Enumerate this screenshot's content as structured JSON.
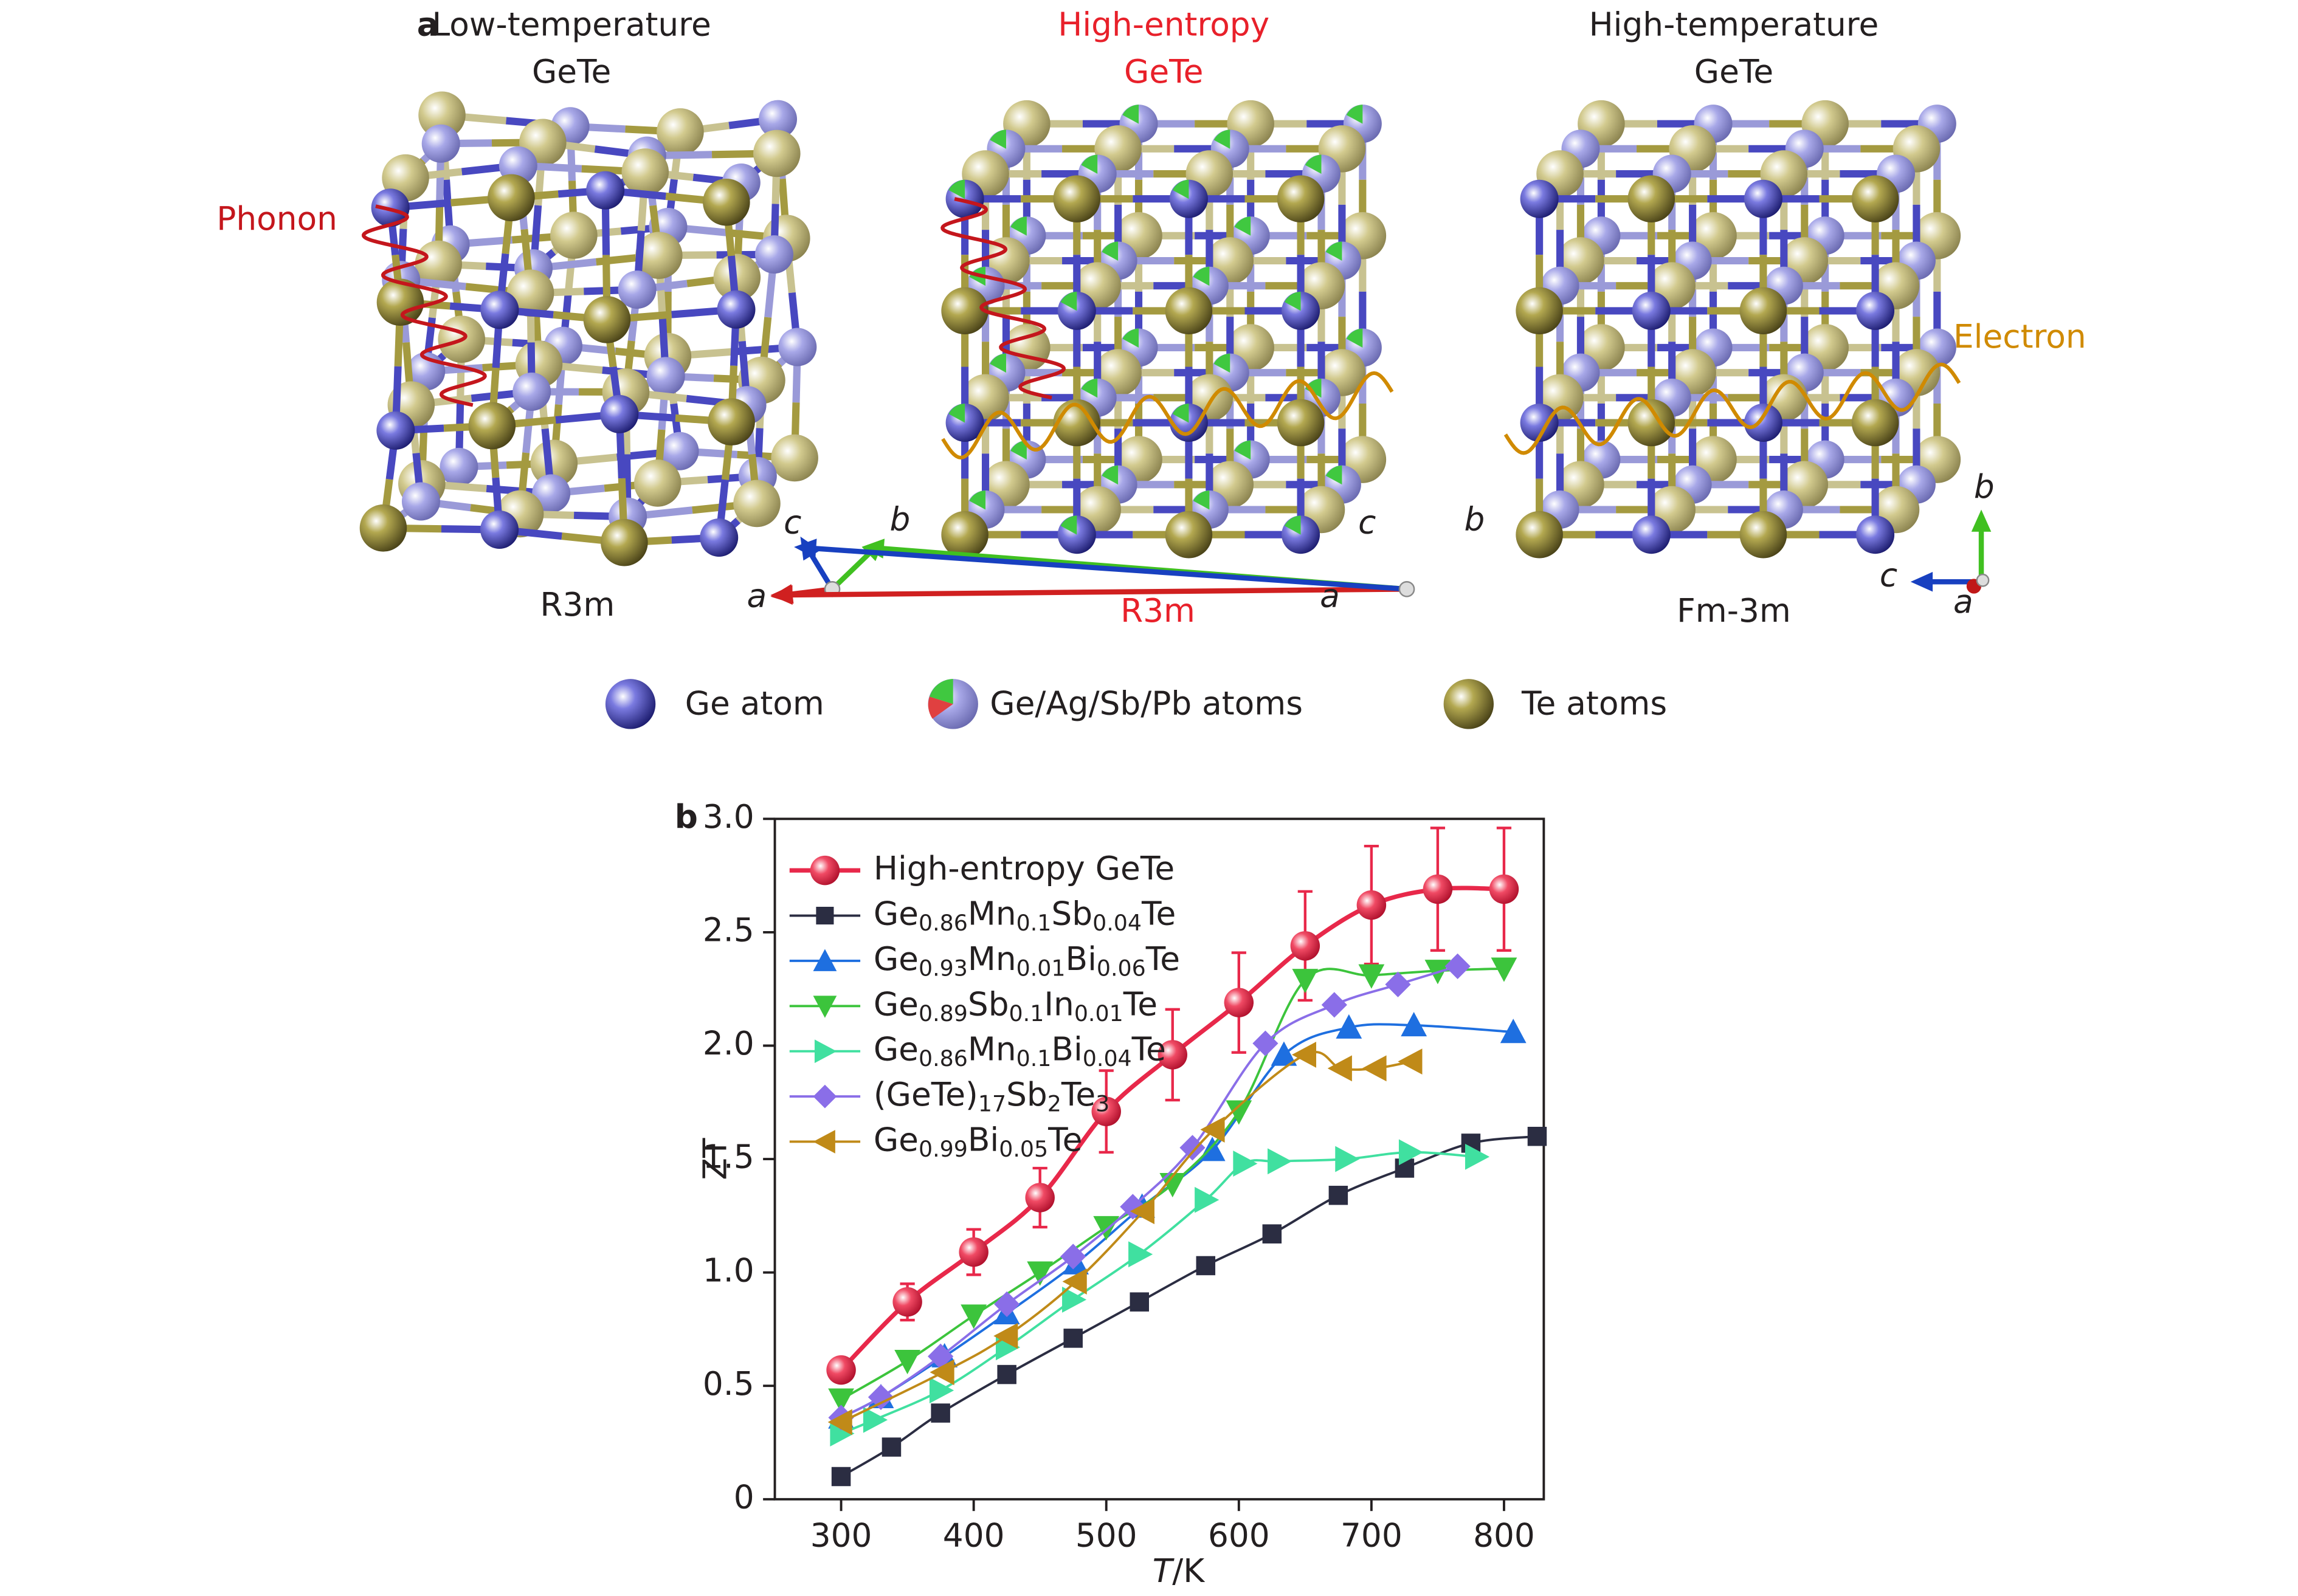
{
  "panel_a": {
    "label": "a",
    "structures": [
      {
        "title": "Low-temperature",
        "formula": "GeTe",
        "space_group": "R3m",
        "axes": [
          "a",
          "b",
          "c"
        ]
      },
      {
        "title": "High-entropy",
        "formula": "GeTe",
        "space_group": "R3m",
        "axes": [
          "a",
          "b",
          "c"
        ]
      },
      {
        "title": "High-temperature",
        "formula": "GeTe",
        "space_group": "Fm-3m",
        "axes": [
          "a",
          "b",
          "c"
        ]
      }
    ],
    "phonon": "Phonon",
    "electron": "Electron",
    "legend": [
      "Ge atom",
      "Ge/Ag/Sb/Pb atoms",
      "Te atoms"
    ]
  },
  "panel_b": {
    "label": "b"
  },
  "chart_data": {
    "type": "line",
    "x_label": "T/K",
    "y_label": "ZT",
    "xlim": [
      250,
      830
    ],
    "xticks": [
      300,
      400,
      500,
      600,
      700,
      800
    ],
    "ylim": [
      0,
      3
    ],
    "yticks": [
      0,
      0.5,
      {
        "value": 1,
        "label": "1.0"
      },
      1.5,
      {
        "value": 2,
        "label": "2.0"
      },
      2.5,
      {
        "value": 3,
        "label": "3.0"
      }
    ],
    "legend": "upper left",
    "series": [
      {
        "name": "High-entropy GeTe",
        "color": "#e8284a",
        "marker": "circle",
        "x": [
          300,
          350,
          400,
          450,
          500,
          550,
          600,
          650,
          700,
          750,
          800
        ],
        "values": [
          0.57,
          0.87,
          1.09,
          1.33,
          1.71,
          1.96,
          2.19,
          2.44,
          2.62,
          2.69,
          2.69
        ],
        "errors": [
          0.03,
          0.08,
          0.1,
          0.13,
          0.18,
          0.2,
          0.22,
          0.24,
          0.26,
          0.27,
          0.27
        ]
      },
      {
        "name": "Ge0.86Mn0.1Sb0.04Te",
        "color": "#2b2d42",
        "marker": "square",
        "x": [
          300,
          338,
          375,
          425,
          475,
          525,
          575,
          625,
          675,
          725,
          775,
          825
        ],
        "values": [
          0.1,
          0.23,
          0.38,
          0.55,
          0.71,
          0.87,
          1.03,
          1.17,
          1.34,
          1.46,
          1.57,
          1.6
        ]
      },
      {
        "name": "Ge0.93Mn0.01Bi0.06Te",
        "color": "#1e6fe0",
        "marker": "triangle-up",
        "x": [
          300,
          330,
          378,
          425,
          477,
          527,
          580,
          634,
          683,
          732,
          807
        ],
        "values": [
          0.36,
          0.45,
          0.63,
          0.82,
          1.04,
          1.29,
          1.54,
          1.96,
          2.08,
          2.09,
          2.06
        ]
      },
      {
        "name": "Ge0.89Sb0.1In0.01Te",
        "color": "#3cc43c",
        "marker": "triangle-down",
        "x": [
          300,
          350,
          400,
          450,
          500,
          550,
          600,
          650,
          700,
          750,
          800
        ],
        "values": [
          0.44,
          0.61,
          0.81,
          1.0,
          1.2,
          1.39,
          1.71,
          2.29,
          2.31,
          2.33,
          2.34
        ]
      },
      {
        "name": "Ge0.86Mn0.1Bi0.04Te",
        "color": "#40e0a0",
        "marker": "triangle-right",
        "x": [
          300,
          325,
          375,
          425,
          475,
          525,
          575,
          604,
          630,
          681,
          729,
          779
        ],
        "values": [
          0.29,
          0.35,
          0.48,
          0.67,
          0.88,
          1.08,
          1.32,
          1.48,
          1.49,
          1.5,
          1.53,
          1.51
        ]
      },
      {
        "name": "(GeTe)17Sb2Te3",
        "color": "#8a6ee8",
        "marker": "diamond",
        "x": [
          300,
          330,
          375,
          425,
          475,
          520,
          565,
          620,
          672,
          720,
          765
        ],
        "values": [
          0.36,
          0.45,
          0.63,
          0.86,
          1.07,
          1.29,
          1.55,
          2.01,
          2.18,
          2.27,
          2.35
        ]
      },
      {
        "name": "Ge0.99Bi0.05Te",
        "color": "#c08a18",
        "marker": "triangle-left",
        "x": [
          300,
          377,
          425,
          477,
          528,
          581,
          650,
          677,
          703,
          730
        ],
        "values": [
          0.34,
          0.56,
          0.72,
          0.96,
          1.27,
          1.63,
          1.96,
          1.9,
          1.9,
          1.93
        ]
      }
    ]
  }
}
